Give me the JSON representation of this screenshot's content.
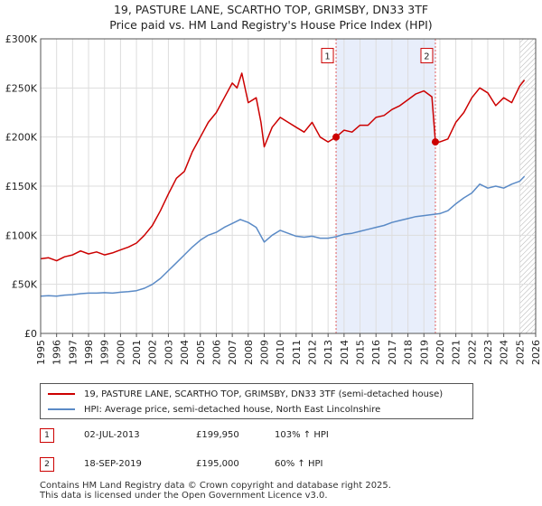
{
  "title_line1": "19, PASTURE LANE, SCARTHO TOP, GRIMSBY, DN33 3TF",
  "title_line2": "Price paid vs. HM Land Registry's House Price Index (HPI)",
  "colors": {
    "property": "#cc0000",
    "hpi": "#5a8ac6",
    "shade": "#e8eefb",
    "hatch": "#b0b0b0"
  },
  "chart_data": {
    "type": "line",
    "xlim": [
      1995,
      2026
    ],
    "ylim": [
      0,
      300000
    ],
    "y_ticks": [
      0,
      50000,
      100000,
      150000,
      200000,
      250000,
      300000
    ],
    "y_tick_labels": [
      "£0",
      "£50K",
      "£100K",
      "£150K",
      "£200K",
      "£250K",
      "£300K"
    ],
    "x_ticks": [
      1995,
      1996,
      1997,
      1998,
      1999,
      2000,
      2001,
      2002,
      2003,
      2004,
      2005,
      2006,
      2007,
      2008,
      2009,
      2010,
      2011,
      2012,
      2013,
      2014,
      2015,
      2016,
      2017,
      2018,
      2019,
      2020,
      2021,
      2022,
      2023,
      2024,
      2025,
      2026
    ],
    "x_tick_labels": [
      "1995",
      "1996",
      "1997",
      "1998",
      "1999",
      "2000",
      "2001",
      "2002",
      "2003",
      "2004",
      "2005",
      "2006",
      "2007",
      "2008",
      "2009",
      "2010",
      "2011",
      "2012",
      "2013",
      "2014",
      "2015",
      "2016",
      "2017",
      "2018",
      "2019",
      "2020",
      "2021",
      "2022",
      "2023",
      "2024",
      "2025",
      "2026"
    ],
    "shaded_range": [
      2013.5,
      2019.72
    ],
    "forecast_start": 2025.0,
    "series": [
      {
        "name": "19, PASTURE LANE, SCARTHO TOP, GRIMSBY, DN33 3TF (semi-detached house)",
        "x": [
          1995,
          1995.5,
          1996,
          1996.5,
          1997,
          1997.5,
          1998,
          1998.5,
          1999,
          1999.5,
          2000,
          2000.5,
          2001,
          2001.5,
          2002,
          2002.5,
          2003,
          2003.5,
          2004,
          2004.5,
          2005,
          2005.5,
          2006,
          2006.5,
          2007,
          2007.3,
          2007.6,
          2008,
          2008.5,
          2008.8,
          2009,
          2009.5,
          2010,
          2010.5,
          2011,
          2011.5,
          2012,
          2012.5,
          2013,
          2013.5,
          2014,
          2014.5,
          2015,
          2015.5,
          2016,
          2016.5,
          2017,
          2017.5,
          2018,
          2018.5,
          2019,
          2019.5,
          2019.72,
          2020,
          2020.5,
          2021,
          2021.5,
          2022,
          2022.5,
          2023,
          2023.5,
          2024,
          2024.5,
          2025,
          2025.3
        ],
        "values": [
          76000,
          77000,
          74000,
          78000,
          80000,
          84000,
          81000,
          83000,
          80000,
          82000,
          85000,
          88000,
          92000,
          100000,
          110000,
          125000,
          142000,
          158000,
          165000,
          185000,
          200000,
          215000,
          225000,
          240000,
          255000,
          250000,
          265000,
          235000,
          240000,
          215000,
          190000,
          210000,
          220000,
          215000,
          210000,
          205000,
          215000,
          200000,
          195000,
          199950,
          207000,
          205000,
          212000,
          212000,
          220000,
          222000,
          228000,
          232000,
          238000,
          244000,
          247000,
          241000,
          195000,
          195000,
          198000,
          215000,
          225000,
          240000,
          250000,
          245000,
          232000,
          240000,
          235000,
          252000,
          258000
        ]
      },
      {
        "name": "HPI: Average price, semi-detached house, North East Lincolnshire",
        "x": [
          1995,
          1995.5,
          1996,
          1996.5,
          1997,
          1997.5,
          1998,
          1998.5,
          1999,
          1999.5,
          2000,
          2000.5,
          2001,
          2001.5,
          2002,
          2002.5,
          2003,
          2003.5,
          2004,
          2004.5,
          2005,
          2005.5,
          2006,
          2006.5,
          2007,
          2007.5,
          2008,
          2008.5,
          2009,
          2009.5,
          2010,
          2010.5,
          2011,
          2011.5,
          2012,
          2012.5,
          2013,
          2013.5,
          2014,
          2014.5,
          2015,
          2015.5,
          2016,
          2016.5,
          2017,
          2017.5,
          2018,
          2018.5,
          2019,
          2019.5,
          2020,
          2020.5,
          2021,
          2021.5,
          2022,
          2022.5,
          2023,
          2023.5,
          2024,
          2024.5,
          2025,
          2025.3
        ],
        "values": [
          38000,
          38500,
          38000,
          39000,
          39500,
          40500,
          41000,
          41000,
          41500,
          41000,
          42000,
          42500,
          43500,
          46000,
          50000,
          56000,
          64000,
          72000,
          80000,
          88000,
          95000,
          100000,
          103000,
          108000,
          112000,
          116000,
          113000,
          108000,
          93000,
          100000,
          105000,
          102000,
          99000,
          98000,
          99000,
          97000,
          97000,
          98500,
          101000,
          102000,
          104000,
          106000,
          108000,
          110000,
          113000,
          115000,
          117000,
          119000,
          120000,
          121000,
          122000,
          125000,
          132000,
          138000,
          143000,
          152000,
          148000,
          150000,
          148000,
          152000,
          155000,
          160000
        ]
      }
    ],
    "sales": [
      {
        "label": "1",
        "x": 2013.5,
        "y": 199950
      },
      {
        "label": "2",
        "x": 2019.72,
        "y": 195000
      }
    ]
  },
  "legend": {
    "property": "19, PASTURE LANE, SCARTHO TOP, GRIMSBY, DN33 3TF (semi-detached house)",
    "hpi": "HPI: Average price, semi-detached house, North East Lincolnshire"
  },
  "sales_table": [
    {
      "num": "1",
      "date": "02-JUL-2013",
      "price": "£199,950",
      "hpi": "103% ↑ HPI"
    },
    {
      "num": "2",
      "date": "18-SEP-2019",
      "price": "£195,000",
      "hpi": "60% ↑ HPI"
    }
  ],
  "footer_line1": "Contains HM Land Registry data © Crown copyright and database right 2025.",
  "footer_line2": "This data is licensed under the Open Government Licence v3.0."
}
